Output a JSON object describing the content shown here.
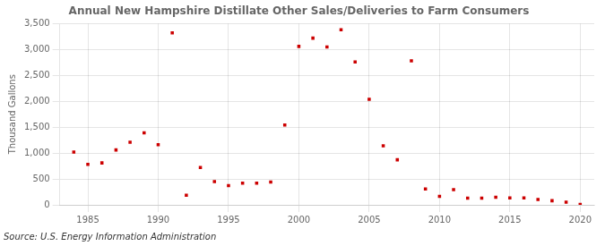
{
  "chart_data": {
    "type": "scatter",
    "title": "Annual New Hampshire Distillate Other Sales/Deliveries to Farm Consumers",
    "y_label": "Thousand Gallons",
    "annotations": [
      "Source: U.S. Energy Information Administration"
    ],
    "x": [
      1984,
      1985,
      1986,
      1987,
      1988,
      1989,
      1990,
      1991,
      1992,
      1993,
      1994,
      1995,
      1996,
      1997,
      1998,
      1999,
      2000,
      2001,
      2002,
      2003,
      2004,
      2005,
      2006,
      2007,
      2008,
      2009,
      2010,
      2011,
      2012,
      2013,
      2014,
      2015,
      2016,
      2017,
      2018,
      2019,
      2020
    ],
    "values": [
      1020,
      780,
      810,
      1060,
      1210,
      1390,
      1160,
      3320,
      185,
      720,
      450,
      370,
      420,
      420,
      440,
      1540,
      3060,
      3220,
      3050,
      3380,
      2760,
      2040,
      1140,
      870,
      2780,
      305,
      165,
      295,
      130,
      130,
      145,
      135,
      135,
      105,
      80,
      50,
      10
    ],
    "color": "#cc0000",
    "marker": "square",
    "xlim": [
      1983,
      2021
    ],
    "ylim": [
      0,
      3500
    ],
    "xticks": [
      1985,
      1990,
      1995,
      2000,
      2005,
      2010,
      2015,
      2020
    ],
    "yticks": [
      0,
      500,
      {
        "value": 1000,
        "label": "1,000"
      },
      {
        "value": 1500,
        "label": "1,500"
      },
      {
        "value": 2000,
        "label": "2,000"
      },
      {
        "value": 2500,
        "label": "2,500"
      },
      {
        "value": 3000,
        "label": "3,000"
      },
      {
        "value": 3500,
        "label": "3,500"
      }
    ],
    "grid": true
  }
}
